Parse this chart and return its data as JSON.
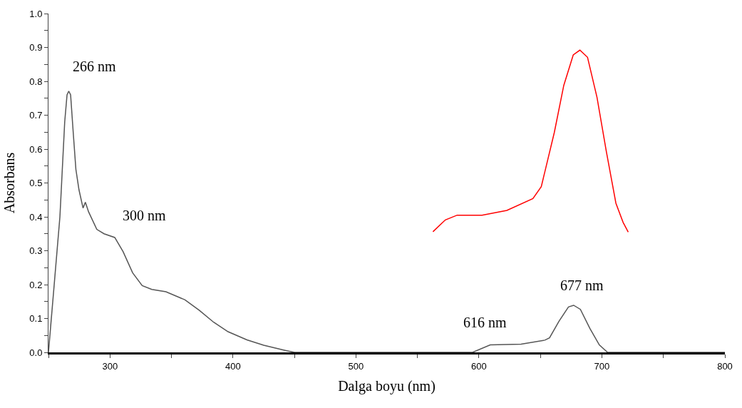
{
  "chart_data": {
    "type": "line",
    "xlabel": "Dalga boyu (nm)",
    "ylabel": "Absorbans",
    "series": [
      {
        "color": "#555555",
        "x": [
          250,
          254.5,
          259.3,
          263.2,
          265.1,
          266.5,
          268,
          270.3,
          272.3,
          274.8,
          278.1,
          280,
          282.6,
          289.3,
          295.2,
          303.9,
          310.7,
          318.4,
          326.2,
          334,
          345.5,
          361,
          372.7,
          384.3,
          396,
          411.4,
          425,
          442.4,
          450,
          594.8,
          609.2,
          634.3,
          653.6,
          657.4,
          665.1,
          672.8,
          677,
          682.5,
          690.2,
          697.9,
          704.6,
          800
        ],
        "values": [
          0,
          0.193,
          0.4,
          0.68,
          0.76,
          0.771,
          0.76,
          0.64,
          0.54,
          0.48,
          0.426,
          0.443,
          0.415,
          0.363,
          0.35,
          0.339,
          0.297,
          0.235,
          0.197,
          0.186,
          0.179,
          0.155,
          0.124,
          0.089,
          0.061,
          0.037,
          0.021,
          0.006,
          0,
          0,
          0.022,
          0.024,
          0.036,
          0.043,
          0.092,
          0.134,
          0.139,
          0.127,
          0.071,
          0.022,
          0,
          0
        ]
      },
      {
        "color": "#ff0000",
        "x": [
          562.6,
          572.7,
          582.3,
          602.5,
          622.7,
          643.9,
          650.7,
          661.3,
          669,
          676.7,
          682.1,
          688.3,
          696,
          703.6,
          711.4,
          717.2,
          721.4
        ],
        "values": [
          0.356,
          0.391,
          0.405,
          0.405,
          0.419,
          0.454,
          0.489,
          0.649,
          0.788,
          0.878,
          0.892,
          0.871,
          0.753,
          0.593,
          0.44,
          0.384,
          0.355
        ]
      }
    ],
    "annotations": [
      {
        "text": "266 nm",
        "x": 266,
        "y": 0.771
      },
      {
        "text": "300 nm",
        "x": 300,
        "y": 0.34
      },
      {
        "text": "616 nm",
        "x": 616,
        "y": 0.024
      },
      {
        "text": "677 nm",
        "x": 677,
        "y": 0.139
      }
    ],
    "xlim": [
      250,
      800
    ],
    "xticks": [
      {
        "value": 250,
        "label": null
      },
      300,
      {
        "value": 350,
        "label": null
      },
      400,
      {
        "value": 450,
        "label": null
      },
      500,
      {
        "value": 550,
        "label": null
      },
      600,
      {
        "value": 650,
        "label": null
      },
      700,
      {
        "value": 750,
        "label": null
      },
      800
    ],
    "ylim": [
      0,
      1.0
    ],
    "yticks": [
      {
        "value": 0,
        "label": "0.0"
      },
      {
        "value": 0.05,
        "label": null
      },
      {
        "value": 0.1,
        "label": "0.1"
      },
      {
        "value": 0.15,
        "label": null
      },
      {
        "value": 0.2,
        "label": "0.2"
      },
      {
        "value": 0.25,
        "label": null
      },
      {
        "value": 0.3,
        "label": "0.3"
      },
      {
        "value": 0.35,
        "label": null
      },
      {
        "value": 0.4,
        "label": "0.4"
      },
      {
        "value": 0.45,
        "label": null
      },
      {
        "value": 0.5,
        "label": "0.5"
      },
      {
        "value": 0.55,
        "label": null
      },
      {
        "value": 0.6,
        "label": "0.6"
      },
      {
        "value": 0.65,
        "label": null
      },
      {
        "value": 0.7,
        "label": "0.7"
      },
      {
        "value": 0.75,
        "label": null
      },
      {
        "value": 0.8,
        "label": "0.8"
      },
      {
        "value": 0.85,
        "label": null
      },
      {
        "value": 0.9,
        "label": "0.9"
      },
      {
        "value": 0.95,
        "label": null
      },
      {
        "value": 1.0,
        "label": "1.0"
      }
    ],
    "marker": "none",
    "line_style": "solid"
  }
}
